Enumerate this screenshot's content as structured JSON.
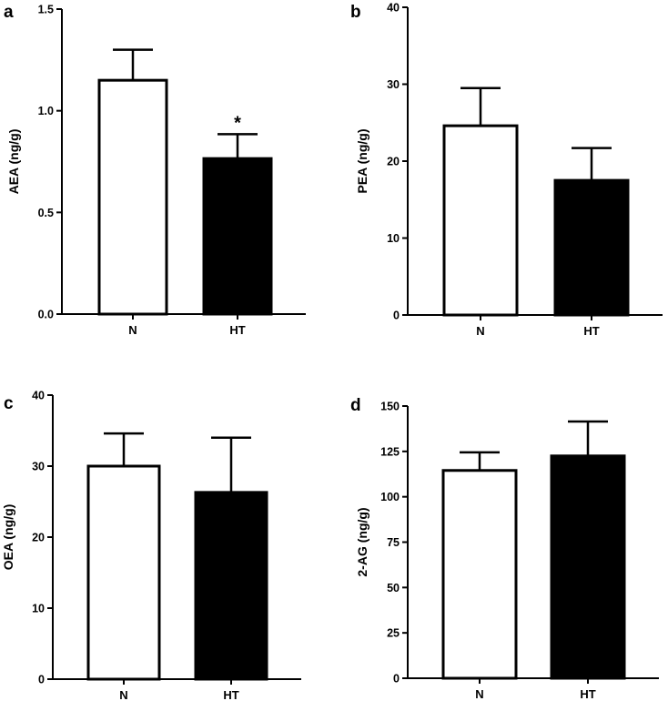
{
  "chart_data": [
    {
      "type": "bar",
      "panel": "a",
      "ylabel": "AEA (ng/g)",
      "categories": [
        "N",
        "HT"
      ],
      "values": [
        1.15,
        0.765
      ],
      "errors": [
        0.15,
        0.12
      ],
      "bar_colors": [
        "#ffffff",
        "#000000"
      ],
      "ylim": [
        0,
        1.5
      ],
      "yticks": [
        0,
        0.5,
        1.0,
        1.5
      ],
      "ytick_labels": [
        "0.0",
        "0.5",
        "1.0",
        "1.5"
      ],
      "annotations": [
        {
          "category": "HT",
          "text": "*"
        }
      ]
    },
    {
      "type": "bar",
      "panel": "b",
      "ylabel": "PEA (ng/g)",
      "categories": [
        "N",
        "HT"
      ],
      "values": [
        24.6,
        17.5
      ],
      "errors": [
        4.9,
        4.2
      ],
      "bar_colors": [
        "#ffffff",
        "#000000"
      ],
      "ylim": [
        0,
        40
      ],
      "yticks": [
        0,
        10,
        20,
        30,
        40
      ],
      "ytick_labels": [
        "0",
        "10",
        "20",
        "30",
        "40"
      ],
      "annotations": []
    },
    {
      "type": "bar",
      "panel": "c",
      "ylabel": "OEA (ng/g)",
      "categories": [
        "N",
        "HT"
      ],
      "values": [
        30.0,
        26.3
      ],
      "errors": [
        4.6,
        7.7
      ],
      "bar_colors": [
        "#ffffff",
        "#000000"
      ],
      "ylim": [
        0,
        40
      ],
      "yticks": [
        0,
        10,
        20,
        30,
        40
      ],
      "ytick_labels": [
        "0",
        "10",
        "20",
        "30",
        "40"
      ],
      "annotations": []
    },
    {
      "type": "bar",
      "panel": "d",
      "ylabel": "2-AG (ng/g)",
      "categories": [
        "N",
        "HT"
      ],
      "values": [
        114.5,
        122.5
      ],
      "errors": [
        10.0,
        19.0
      ],
      "bar_colors": [
        "#ffffff",
        "#000000"
      ],
      "ylim": [
        0,
        150
      ],
      "yticks": [
        0,
        25,
        50,
        75,
        100,
        125,
        150
      ],
      "ytick_labels": [
        "0",
        "25",
        "50",
        "75",
        "100",
        "125",
        "150"
      ],
      "annotations": []
    }
  ]
}
